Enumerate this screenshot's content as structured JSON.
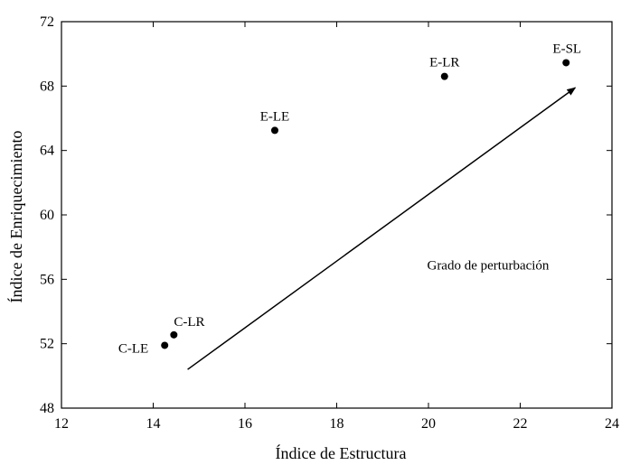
{
  "chart_data": {
    "type": "scatter",
    "xlabel": "Índice de Estructura",
    "ylabel": "Índice de Enriquecimiento",
    "xlim": [
      12,
      24
    ],
    "ylim": [
      48,
      72
    ],
    "xticks": [
      12,
      14,
      16,
      18,
      20,
      22,
      24
    ],
    "yticks": [
      48,
      52,
      56,
      60,
      64,
      68,
      72
    ],
    "grid": false,
    "points": [
      {
        "label": "C-LE",
        "x": 14.25,
        "y": 51.9
      },
      {
        "label": "C-LR",
        "x": 14.45,
        "y": 52.55
      },
      {
        "label": "E-LE",
        "x": 16.65,
        "y": 65.25
      },
      {
        "label": "E-LR",
        "x": 20.35,
        "y": 68.6
      },
      {
        "label": "E-SL",
        "x": 23.0,
        "y": 69.45
      }
    ],
    "arrow": {
      "from": [
        14.75,
        50.4
      ],
      "to": [
        23.2,
        67.9
      ]
    },
    "annotation": {
      "text": "Grado de perturbación",
      "x": 21.3,
      "y": 56.6
    }
  }
}
